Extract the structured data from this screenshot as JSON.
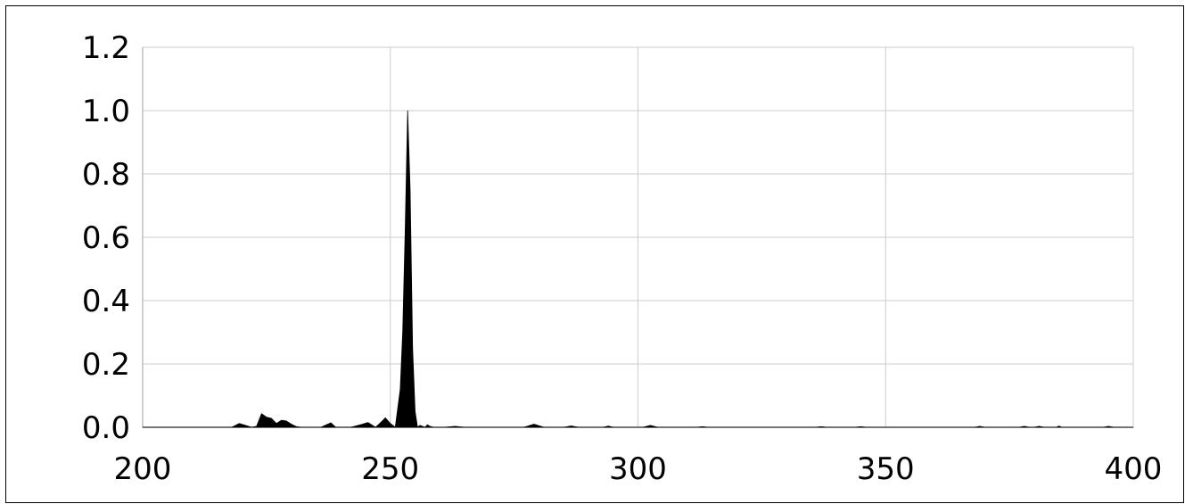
{
  "chart_data": {
    "type": "area",
    "title": "",
    "xlabel": "",
    "ylabel": "",
    "xlim": [
      200,
      400
    ],
    "ylim": [
      0,
      1.2
    ],
    "x_ticks": [
      "200",
      "250",
      "300",
      "350",
      "400"
    ],
    "y_ticks": [
      "0.0",
      "0.2",
      "0.4",
      "0.6",
      "0.8",
      "1.0",
      "1.2"
    ],
    "grid": true,
    "legend": "none",
    "series": [
      {
        "x": [
          200,
          218,
          219.5,
          221,
          222,
          223,
          224,
          225,
          226,
          227,
          228,
          229,
          230,
          231,
          232,
          236,
          238,
          239,
          242,
          244,
          245.5,
          247,
          248,
          249,
          250,
          251,
          252,
          252.5,
          253,
          253.5,
          254,
          254.5,
          255,
          255.5,
          256,
          257,
          257.5,
          258,
          258.7,
          259.5,
          261,
          263,
          265,
          277,
          279,
          281,
          285,
          286.5,
          288,
          293,
          294,
          295,
          301,
          302.5,
          304,
          312,
          313,
          314,
          336,
          337,
          338,
          344,
          345,
          346,
          368,
          369,
          370,
          377,
          378,
          379,
          380,
          381,
          382,
          384.5,
          385,
          385.5,
          394,
          395,
          396,
          400
        ],
        "values": [
          0,
          0,
          0.012,
          0.005,
          0,
          0.003,
          0.043,
          0.032,
          0.028,
          0.012,
          0.022,
          0.02,
          0.01,
          0.002,
          0,
          0,
          0.014,
          0,
          0,
          0.008,
          0.015,
          0,
          0.014,
          0.03,
          0.012,
          0,
          0.12,
          0.3,
          0.62,
          1.0,
          0.75,
          0.25,
          0.05,
          0,
          0.006,
          0,
          0.008,
          0.003,
          0,
          0,
          0,
          0.003,
          0,
          0,
          0.01,
          0,
          0,
          0.004,
          0,
          0,
          0.004,
          0,
          0,
          0.006,
          0,
          0,
          0.002,
          0,
          0,
          0.002,
          0,
          0,
          0.002,
          0,
          0,
          0.003,
          0,
          0,
          0.003,
          0,
          0,
          0.003,
          0,
          0,
          0.004,
          0,
          0,
          0.003,
          0,
          0
        ],
        "color": "#000000"
      }
    ]
  }
}
